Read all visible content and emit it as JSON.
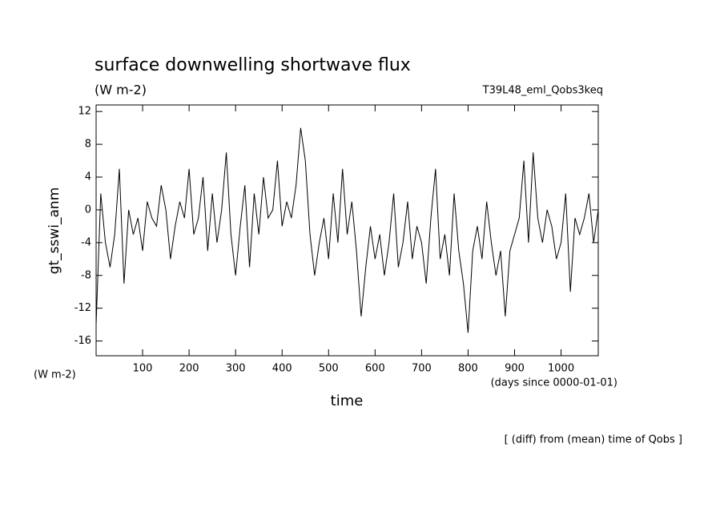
{
  "chart_data": {
    "type": "line",
    "title": "surface downwelling shortwave flux",
    "subtitle": "(W m-2)",
    "run_label": "T39L48_eml_Qobs3keq",
    "y_label": "gt_sswi_anm",
    "y_unit": "(W m-2)",
    "x_label": "time",
    "x_unit": "(days since 0000-01-01)",
    "note": "[ (diff) from (mean) time of Qobs ]",
    "xlim": [
      0,
      1080
    ],
    "ylim": [
      -17.8,
      12.8
    ],
    "xticks": [
      100,
      200,
      300,
      400,
      500,
      600,
      700,
      800,
      900,
      1000
    ],
    "yticks": [
      12,
      8,
      4,
      0,
      -4,
      -8,
      -12,
      -16
    ],
    "x": [
      0,
      10,
      20,
      30,
      40,
      50,
      60,
      70,
      80,
      90,
      100,
      110,
      120,
      130,
      140,
      150,
      160,
      170,
      180,
      190,
      200,
      210,
      220,
      230,
      240,
      250,
      260,
      270,
      280,
      290,
      300,
      310,
      320,
      330,
      340,
      350,
      360,
      370,
      380,
      390,
      400,
      410,
      420,
      430,
      440,
      450,
      460,
      470,
      480,
      490,
      500,
      510,
      520,
      530,
      540,
      550,
      560,
      570,
      580,
      590,
      600,
      610,
      620,
      630,
      640,
      650,
      660,
      670,
      680,
      690,
      700,
      710,
      720,
      730,
      740,
      750,
      760,
      770,
      780,
      790,
      800,
      810,
      820,
      830,
      840,
      850,
      860,
      870,
      880,
      890,
      900,
      910,
      920,
      930,
      940,
      950,
      960,
      970,
      980,
      990,
      1000,
      1010,
      1020,
      1030,
      1040,
      1050,
      1060,
      1070,
      1080
    ],
    "series": [
      {
        "name": "gt_sswi_anm",
        "color": "#000000",
        "values": [
          -14,
          2,
          -4,
          -7,
          -3,
          5,
          -9,
          0,
          -3,
          -1,
          -5,
          1,
          -1,
          -2,
          3,
          0,
          -6,
          -2,
          1,
          -1,
          5,
          -3,
          -1,
          4,
          -5,
          2,
          -4,
          0,
          7,
          -3,
          -8,
          -2,
          3,
          -7,
          2,
          -3,
          4,
          -1,
          0,
          6,
          -2,
          1,
          -1,
          3,
          10,
          6,
          -3,
          -8,
          -4,
          -1,
          -6,
          2,
          -4,
          5,
          -3,
          1,
          -5,
          -13,
          -7,
          -2,
          -6,
          -3,
          -8,
          -4,
          2,
          -7,
          -4,
          1,
          -6,
          -2,
          -4,
          -9,
          -1,
          5,
          -6,
          -3,
          -8,
          2,
          -5,
          -9,
          -15,
          -5,
          -2,
          -6,
          1,
          -4,
          -8,
          -5,
          -13,
          -5,
          -3,
          -1,
          6,
          -4,
          7,
          -1,
          -4,
          0,
          -2,
          -6,
          -4,
          2,
          -10,
          -1,
          -3,
          -1,
          2,
          -4,
          0
        ]
      }
    ]
  }
}
